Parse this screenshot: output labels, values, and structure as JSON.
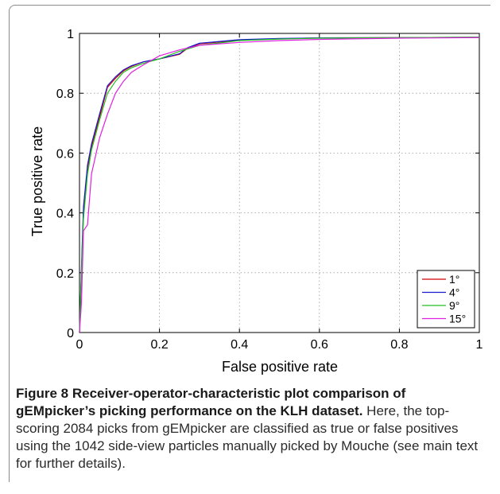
{
  "chart_data": {
    "type": "line",
    "xlabel": "False positive rate",
    "ylabel": "True positive rate",
    "xlim": [
      0,
      1
    ],
    "ylim": [
      0,
      1
    ],
    "xticks": [
      "0",
      "0.2",
      "0.4",
      "0.6",
      "0.8",
      "1"
    ],
    "yticks": [
      "0",
      "0.2",
      "0.4",
      "0.6",
      "0.8",
      "1"
    ],
    "grid": true,
    "legend_position": "bottom-right",
    "series": [
      {
        "name": "1°",
        "color": "#d40000",
        "x": [
          0,
          0.005,
          0.01,
          0.02,
          0.03,
          0.05,
          0.07,
          0.09,
          0.11,
          0.13,
          0.16,
          0.2,
          0.25,
          0.27,
          0.3,
          0.4,
          0.5,
          0.6,
          0.8,
          1.0
        ],
        "y": [
          0,
          0.2,
          0.4,
          0.55,
          0.62,
          0.72,
          0.82,
          0.85,
          0.875,
          0.89,
          0.905,
          0.915,
          0.93,
          0.95,
          0.965,
          0.978,
          0.982,
          0.985,
          0.986,
          0.987
        ]
      },
      {
        "name": "4°",
        "color": "#1a1ad0",
        "x": [
          0,
          0.005,
          0.01,
          0.02,
          0.03,
          0.05,
          0.07,
          0.09,
          0.11,
          0.13,
          0.16,
          0.2,
          0.25,
          0.27,
          0.3,
          0.4,
          0.5,
          0.6,
          0.8,
          1.0
        ],
        "y": [
          0,
          0.22,
          0.42,
          0.56,
          0.63,
          0.73,
          0.825,
          0.855,
          0.878,
          0.892,
          0.905,
          0.915,
          0.932,
          0.952,
          0.967,
          0.979,
          0.983,
          0.985,
          0.986,
          0.987
        ]
      },
      {
        "name": "9°",
        "color": "#22c022",
        "x": [
          0,
          0.005,
          0.01,
          0.02,
          0.03,
          0.05,
          0.07,
          0.09,
          0.11,
          0.13,
          0.16,
          0.2,
          0.25,
          0.3,
          0.4,
          0.5,
          0.6,
          0.8,
          1.0
        ],
        "y": [
          0,
          0.2,
          0.38,
          0.53,
          0.61,
          0.71,
          0.8,
          0.84,
          0.87,
          0.885,
          0.9,
          0.915,
          0.94,
          0.96,
          0.976,
          0.981,
          0.984,
          0.986,
          0.987
        ]
      },
      {
        "name": "15°",
        "color": "#e020e0",
        "x": [
          0,
          0.005,
          0.01,
          0.02,
          0.03,
          0.05,
          0.07,
          0.09,
          0.11,
          0.13,
          0.16,
          0.2,
          0.25,
          0.3,
          0.4,
          0.5,
          0.6,
          0.8,
          1.0
        ],
        "y": [
          0,
          0.1,
          0.34,
          0.36,
          0.53,
          0.65,
          0.73,
          0.8,
          0.84,
          0.87,
          0.895,
          0.925,
          0.945,
          0.96,
          0.97,
          0.976,
          0.98,
          0.984,
          0.986
        ]
      }
    ]
  },
  "caption": {
    "label": "Figure 8",
    "title": "Receiver-operator-characteristic plot comparison of gEMpicker’s picking performance on the KLH dataset.",
    "body": "Here, the top-scoring 2084 picks from gEMpicker are classified as true or false positives using the 1042 side-view particles manually picked by Mouche (see main text for further details)."
  }
}
